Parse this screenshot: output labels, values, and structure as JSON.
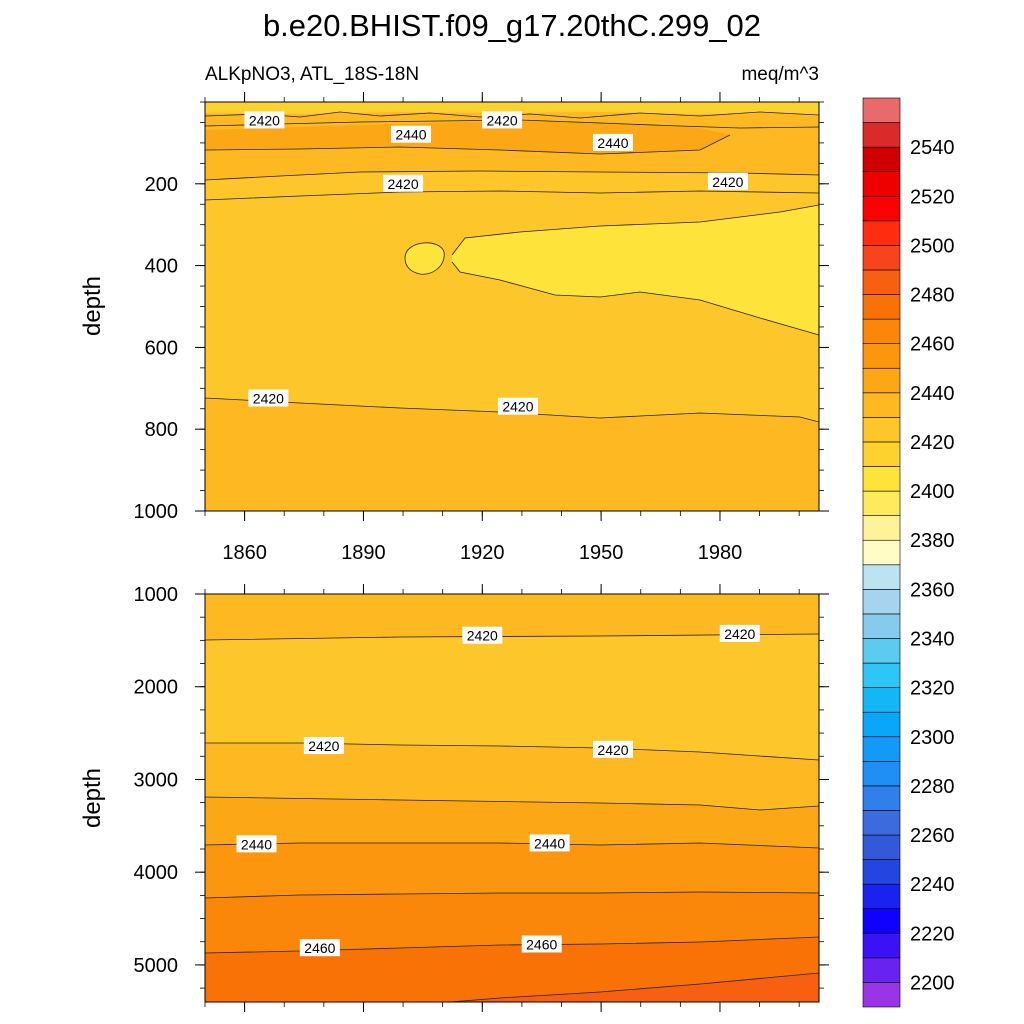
{
  "chart_data": {
    "type": "contour",
    "title": "b.e20.BHIST.f09_g17.20thC.299_02",
    "variable": "ALKpNO3, ATL_18S-18N",
    "units": "meq/m^3",
    "ylabel": "depth",
    "x_ticks": [
      "1860",
      "1890",
      "1920",
      "1950",
      "1980"
    ],
    "x_tick_values": [
      1860,
      1890,
      1920,
      1950,
      1980
    ],
    "xlim": [
      1850,
      2005
    ],
    "panels": [
      {
        "name": "upper",
        "ylim": [
          0,
          1000
        ],
        "y_ticks": [
          "200",
          "400",
          "600",
          "800",
          "1000"
        ],
        "y_tick_values": [
          200,
          400,
          600,
          800,
          1000
        ],
        "contour_labels": [
          {
            "text": "2420",
            "x": 1865,
            "y": 45
          },
          {
            "text": "2440",
            "x": 1902,
            "y": 80
          },
          {
            "text": "2420",
            "x": 1925,
            "y": 45
          },
          {
            "text": "2440",
            "x": 1953,
            "y": 100
          },
          {
            "text": "2420",
            "x": 1900,
            "y": 200
          },
          {
            "text": "2420",
            "x": 1982,
            "y": 195
          },
          {
            "text": "2420",
            "x": 1866,
            "y": 725
          },
          {
            "text": "2420",
            "x": 1929,
            "y": 745
          }
        ]
      },
      {
        "name": "lower",
        "ylim": [
          1000,
          5400
        ],
        "y_ticks": [
          "1000",
          "2000",
          "3000",
          "4000",
          "5000"
        ],
        "y_tick_values": [
          1000,
          2000,
          3000,
          4000,
          5000
        ],
        "contour_labels": [
          {
            "text": "2420",
            "x": 1920,
            "y": 1450
          },
          {
            "text": "2420",
            "x": 1985,
            "y": 1430
          },
          {
            "text": "2420",
            "x": 1880,
            "y": 2640
          },
          {
            "text": "2420",
            "x": 1953,
            "y": 2680
          },
          {
            "text": "2440",
            "x": 1863,
            "y": 3700
          },
          {
            "text": "2440",
            "x": 1937,
            "y": 3690
          },
          {
            "text": "2460",
            "x": 1879,
            "y": 4820
          },
          {
            "text": "2460",
            "x": 1935,
            "y": 4780
          }
        ]
      }
    ],
    "colorbar": {
      "levels": [
        2190,
        2200,
        2210,
        2220,
        2230,
        2240,
        2250,
        2260,
        2270,
        2280,
        2290,
        2300,
        2310,
        2320,
        2330,
        2340,
        2350,
        2360,
        2370,
        2380,
        2390,
        2400,
        2410,
        2420,
        2430,
        2440,
        2450,
        2460,
        2470,
        2480,
        2490,
        2500,
        2510,
        2520,
        2530,
        2540,
        2550,
        2560
      ],
      "labels": [
        "2200",
        "2220",
        "2240",
        "2260",
        "2280",
        "2300",
        "2320",
        "2340",
        "2360",
        "2380",
        "2400",
        "2420",
        "2440",
        "2460",
        "2480",
        "2500",
        "2520",
        "2540"
      ],
      "label_values": [
        2200,
        2220,
        2240,
        2260,
        2280,
        2300,
        2320,
        2340,
        2360,
        2380,
        2400,
        2420,
        2440,
        2460,
        2480,
        2500,
        2520,
        2540
      ],
      "colors": [
        "#9a35e6",
        "#6a22f0",
        "#3b12f6",
        "#1000ff",
        "#1a22f0",
        "#2545e0",
        "#3358da",
        "#3b6bdc",
        "#2f80ea",
        "#1f8ff5",
        "#1399f8",
        "#0aa6fa",
        "#13b7f6",
        "#2ec6f4",
        "#5bcbf0",
        "#86cbed",
        "#a5d4ee",
        "#bde2f2",
        "#fffcc6",
        "#fff39a",
        "#ffe95d",
        "#fde33a",
        "#fdd22e",
        "#fdc62a",
        "#fdb822",
        "#fca716",
        "#fb960e",
        "#fa860a",
        "#f87206",
        "#f76010",
        "#f7441a",
        "#ff2c10",
        "#ff0000",
        "#ee0000",
        "#d00000",
        "#db2a2a",
        "#e86a6a",
        "#f8afb4"
      ]
    }
  }
}
